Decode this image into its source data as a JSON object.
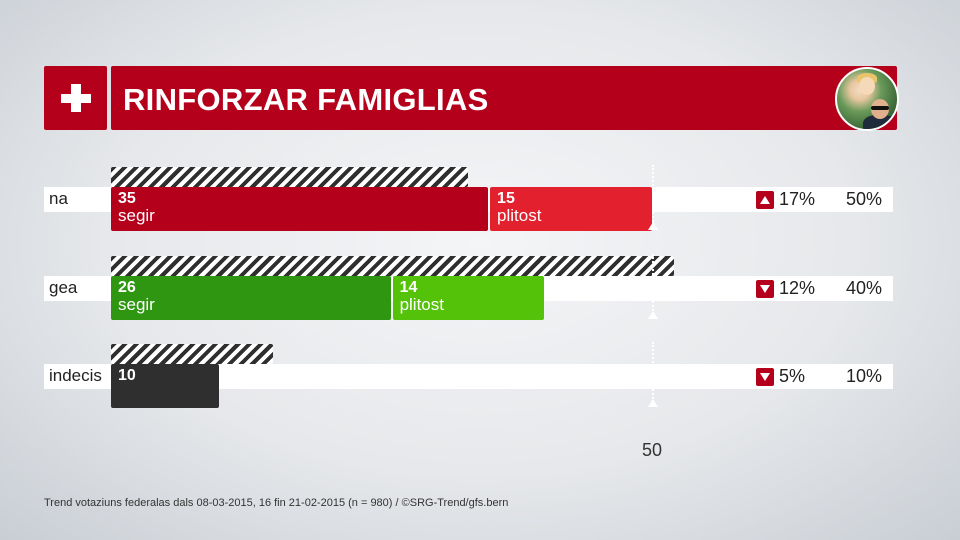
{
  "header": {
    "title": "RINFORZAR FAMIGLIAS",
    "flag_icon": "swiss-cross-icon",
    "brand_color": "#b5001c"
  },
  "chart_data": {
    "type": "bar",
    "orientation": "horizontal-stacked",
    "title": "RINFORZAR FAMIGLIAS",
    "reference_value": 50,
    "reference_label": "50",
    "categories": [
      "na",
      "gea",
      "indecis"
    ],
    "rows": [
      {
        "label": "na",
        "previous_total": 33,
        "segments": [
          {
            "value": 35,
            "value_label": "35",
            "name": "segir",
            "color": "#b5001c"
          },
          {
            "value": 15,
            "value_label": "15",
            "name": "plitost",
            "color": "#e3202e"
          }
        ],
        "change": "17%",
        "change_direction": "up",
        "total": "50%"
      },
      {
        "label": "gea",
        "previous_total": 52,
        "segments": [
          {
            "value": 26,
            "value_label": "26",
            "name": "segir",
            "color": "#2e9610"
          },
          {
            "value": 14,
            "value_label": "14",
            "name": "plitost",
            "color": "#55c20a"
          }
        ],
        "change": "12%",
        "change_direction": "down",
        "total": "40%"
      },
      {
        "label": "indecis",
        "previous_total": 15,
        "segments": [
          {
            "value": 10,
            "value_label": "10",
            "name": "",
            "color": "#2f2f2f"
          }
        ],
        "change": "5%",
        "change_direction": "down",
        "total": "10%"
      }
    ]
  },
  "footer": {
    "source": "Trend votaziuns federalas dals 08-03-2015, 16 fin 21-02-2015 (n = 980) / ©SRG-Trend/gfs.bern"
  }
}
